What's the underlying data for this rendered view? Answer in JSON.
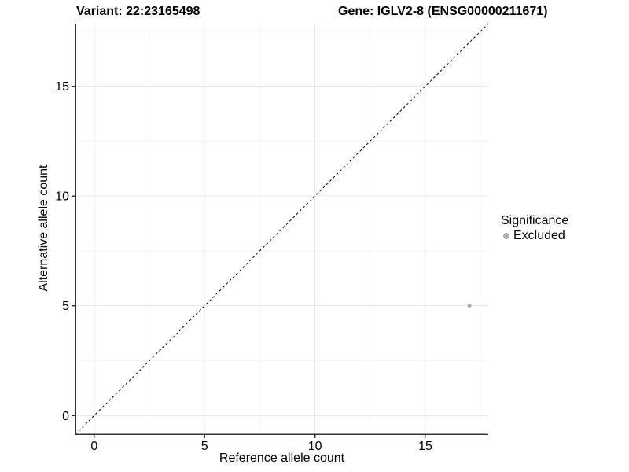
{
  "header": {
    "variant_title": "Variant: 22:23165498",
    "gene_title": "Gene: IGLV2-8 (ENSG00000211671)"
  },
  "chart_data": {
    "type": "scatter",
    "title": "Variant: 22:23165498 | Gene: IGLV2-8 (ENSG00000211671)",
    "xlabel": "Reference allele count",
    "ylabel": "Alternative allele count",
    "xlim": [
      -0.85,
      17.85
    ],
    "ylim": [
      -0.85,
      17.85
    ],
    "x_ticks": [
      0,
      5,
      10,
      15
    ],
    "y_ticks": [
      0,
      5,
      10,
      15
    ],
    "x_minor_ticks": [
      2.5,
      7.5,
      12.5,
      17.5
    ],
    "y_minor_ticks": [
      2.5,
      7.5,
      12.5,
      17.5
    ],
    "grid": "major+minor",
    "reference_line": {
      "kind": "identity y=x",
      "style": "dashed",
      "color": "#000000"
    },
    "series": [
      {
        "name": "Excluded",
        "color": "#b3b3b3",
        "points": [
          {
            "x": 17,
            "y": 5
          }
        ]
      }
    ],
    "legend": {
      "title": "Significance",
      "position": "right",
      "entries": [
        {
          "label": "Excluded",
          "color": "#adadad"
        }
      ]
    },
    "colors": {
      "axis_line": "#333333",
      "grid_major": "#e8e8e8",
      "grid_minor": "#f4f4f4",
      "tick_text": "#000000",
      "background": "#ffffff"
    }
  }
}
